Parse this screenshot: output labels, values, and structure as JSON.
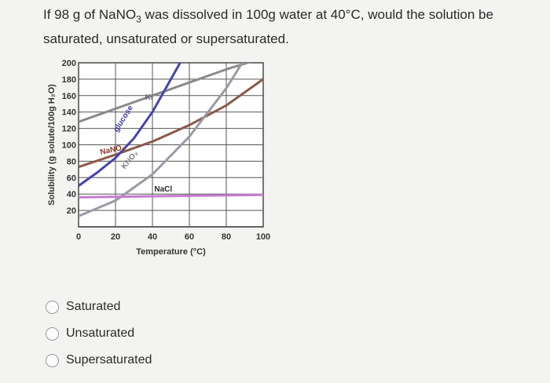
{
  "question": {
    "text_before": "If 98 g of NaNO",
    "subscript": "3",
    "text_after": " was dissolved in 100g water at 40°C, would the solution be saturated, unsaturated or supersaturated."
  },
  "chart_data": {
    "type": "line",
    "xlabel": "Temperature (°C)",
    "ylabel": "Solubility (g solute/100g H₂O)",
    "x_ticks": [
      "0",
      "20",
      "40",
      "60",
      "80",
      "100"
    ],
    "y_ticks": [
      "20",
      "40",
      "60",
      "80",
      "100",
      "120",
      "140",
      "160",
      "180",
      "200"
    ],
    "xlim": [
      0,
      100
    ],
    "ylim": [
      0,
      200
    ],
    "grid": true,
    "series": [
      {
        "name": "NaNO₃",
        "label": "NaNO₃",
        "color": "#8b5a4a",
        "x": [
          0,
          20,
          40,
          60,
          80,
          100
        ],
        "y": [
          73,
          88,
          104,
          124,
          148,
          180
        ]
      },
      {
        "name": "KI",
        "label": "KI",
        "color": "#8a8a8a",
        "x": [
          0,
          20,
          40,
          60,
          80,
          100
        ],
        "y": [
          128,
          144,
          160,
          176,
          192,
          206
        ]
      },
      {
        "name": "glucose",
        "label": "glucose",
        "color": "#4545b0",
        "x": [
          0,
          10,
          20,
          30,
          40,
          50,
          60
        ],
        "y": [
          50,
          66,
          84,
          108,
          140,
          180,
          220
        ]
      },
      {
        "name": "KNO₃",
        "label": "KNO₃",
        "color": "#9a9aa6",
        "x": [
          0,
          20,
          40,
          60,
          80,
          90
        ],
        "y": [
          13,
          32,
          64,
          110,
          169,
          205
        ]
      },
      {
        "name": "NaCl",
        "label": "NaCl",
        "color": "#c77bd0",
        "x": [
          0,
          100
        ],
        "y": [
          36,
          39
        ]
      }
    ]
  },
  "options": [
    {
      "label": "Saturated"
    },
    {
      "label": "Unsaturated"
    },
    {
      "label": "Supersaturated"
    }
  ]
}
